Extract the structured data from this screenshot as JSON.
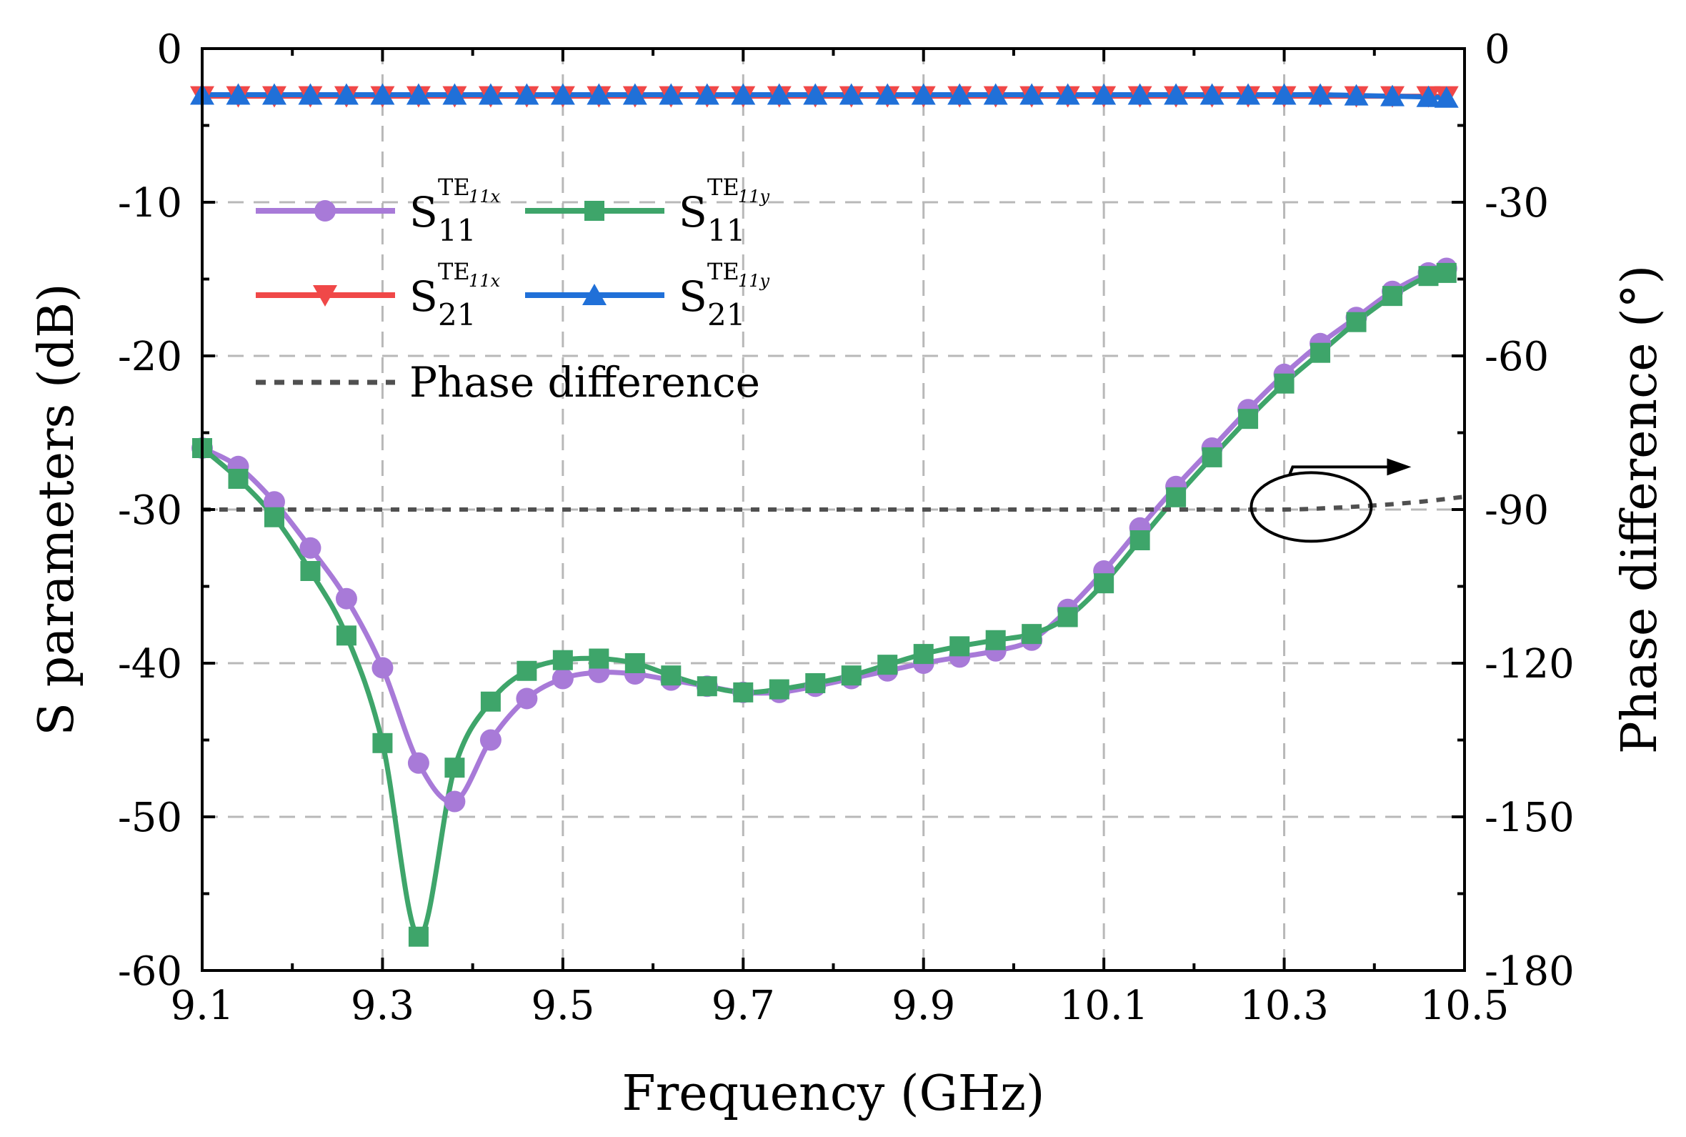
{
  "chart_data": {
    "type": "line",
    "xlabel": "Frequency (GHz)",
    "ylabel": "S parameters (dB)",
    "y2label": "Phase difference (°)",
    "xlim": [
      9.1,
      10.5
    ],
    "ylim": [
      -60,
      0
    ],
    "y2lim": [
      -180,
      0
    ],
    "xticks": [
      "9.1",
      "9.3",
      "9.5",
      "9.7",
      "9.9",
      "10.1",
      "10.3",
      "10.5"
    ],
    "xtick_values": [
      9.1,
      9.3,
      9.5,
      9.7,
      9.9,
      10.1,
      10.3,
      10.5
    ],
    "yticks": [
      "0",
      "-10",
      "-20",
      "-30",
      "-40",
      "-50",
      "-60"
    ],
    "ytick_values": [
      0,
      -10,
      -20,
      -30,
      -40,
      -50,
      -60
    ],
    "y2ticks": [
      "0",
      "-30",
      "-60",
      "-90",
      "-120",
      "-150",
      "-180"
    ],
    "y2tick_values": [
      0,
      -30,
      -60,
      -90,
      -120,
      -150,
      -180
    ],
    "grid": true,
    "legend_position": "upper-left",
    "series": [
      {
        "key": "s11x",
        "label_base": "S",
        "label_sup": "TE",
        "label_sup_sub": "11x",
        "label_sub": "11",
        "color": "#a87ad8",
        "marker": "circle",
        "axis": "left",
        "x": [
          9.1,
          9.14,
          9.18,
          9.22,
          9.26,
          9.3,
          9.34,
          9.38,
          9.42,
          9.46,
          9.5,
          9.54,
          9.58,
          9.62,
          9.66,
          9.7,
          9.74,
          9.78,
          9.82,
          9.86,
          9.9,
          9.94,
          9.98,
          10.02,
          10.06,
          10.1,
          10.14,
          10.18,
          10.22,
          10.26,
          10.3,
          10.34,
          10.38,
          10.42,
          10.46,
          10.48
        ],
        "y": [
          -26.0,
          -27.2,
          -29.5,
          -32.5,
          -35.8,
          -40.3,
          -46.5,
          -49.0,
          -45.0,
          -42.3,
          -41.0,
          -40.6,
          -40.7,
          -41.1,
          -41.5,
          -41.9,
          -41.9,
          -41.5,
          -41.0,
          -40.5,
          -40.0,
          -39.6,
          -39.2,
          -38.5,
          -36.5,
          -34.0,
          -31.2,
          -28.5,
          -26.0,
          -23.5,
          -21.2,
          -19.2,
          -17.5,
          -15.8,
          -14.6,
          -14.3
        ]
      },
      {
        "key": "s11y",
        "label_base": "S",
        "label_sup": "TE",
        "label_sup_sub": "11y",
        "label_sub": "11",
        "color": "#3ea56a",
        "marker": "square",
        "axis": "left",
        "x": [
          9.1,
          9.14,
          9.18,
          9.22,
          9.26,
          9.3,
          9.34,
          9.38,
          9.42,
          9.46,
          9.5,
          9.54,
          9.58,
          9.62,
          9.66,
          9.7,
          9.74,
          9.78,
          9.82,
          9.86,
          9.9,
          9.94,
          9.98,
          10.02,
          10.06,
          10.1,
          10.14,
          10.18,
          10.22,
          10.26,
          10.3,
          10.34,
          10.38,
          10.42,
          10.46,
          10.48
        ],
        "y": [
          -26.0,
          -28.0,
          -30.5,
          -34.0,
          -38.2,
          -45.2,
          -57.8,
          -46.8,
          -42.5,
          -40.5,
          -39.8,
          -39.7,
          -40.0,
          -40.8,
          -41.5,
          -41.9,
          -41.7,
          -41.3,
          -40.8,
          -40.1,
          -39.4,
          -38.9,
          -38.5,
          -38.1,
          -37.0,
          -34.8,
          -32.0,
          -29.2,
          -26.6,
          -24.1,
          -21.8,
          -19.8,
          -17.8,
          -16.1,
          -14.8,
          -14.6
        ]
      },
      {
        "key": "s21x",
        "label_base": "S",
        "label_sup": "TE",
        "label_sup_sub": "11x",
        "label_sub": "21",
        "color": "#f04848",
        "marker": "triangle-down",
        "axis": "left",
        "x": [
          9.1,
          9.14,
          9.18,
          9.22,
          9.26,
          9.3,
          9.34,
          9.38,
          9.42,
          9.46,
          9.5,
          9.54,
          9.58,
          9.62,
          9.66,
          9.7,
          9.74,
          9.78,
          9.82,
          9.86,
          9.9,
          9.94,
          9.98,
          10.02,
          10.06,
          10.1,
          10.14,
          10.18,
          10.22,
          10.26,
          10.3,
          10.34,
          10.38,
          10.42,
          10.46,
          10.48
        ],
        "y": [
          -3.1,
          -3.1,
          -3.1,
          -3.1,
          -3.1,
          -3.1,
          -3.1,
          -3.1,
          -3.1,
          -3.1,
          -3.1,
          -3.1,
          -3.1,
          -3.1,
          -3.1,
          -3.1,
          -3.1,
          -3.1,
          -3.1,
          -3.1,
          -3.1,
          -3.1,
          -3.1,
          -3.1,
          -3.1,
          -3.1,
          -3.1,
          -3.1,
          -3.1,
          -3.1,
          -3.1,
          -3.1,
          -3.1,
          -3.1,
          -3.1,
          -3.1
        ]
      },
      {
        "key": "s21y",
        "label_base": "S",
        "label_sup": "TE",
        "label_sup_sub": "11y",
        "label_sub": "21",
        "color": "#2070d8",
        "marker": "triangle-up",
        "axis": "left",
        "x": [
          9.1,
          9.14,
          9.18,
          9.22,
          9.26,
          9.3,
          9.34,
          9.38,
          9.42,
          9.46,
          9.5,
          9.54,
          9.58,
          9.62,
          9.66,
          9.7,
          9.74,
          9.78,
          9.82,
          9.86,
          9.9,
          9.94,
          9.98,
          10.02,
          10.06,
          10.1,
          10.14,
          10.18,
          10.22,
          10.26,
          10.3,
          10.34,
          10.38,
          10.42,
          10.46,
          10.48
        ],
        "y": [
          -3.0,
          -3.0,
          -3.0,
          -3.0,
          -3.0,
          -3.0,
          -3.0,
          -3.0,
          -3.0,
          -3.0,
          -3.0,
          -3.0,
          -3.0,
          -3.0,
          -3.0,
          -3.0,
          -3.0,
          -3.0,
          -3.0,
          -3.0,
          -3.0,
          -3.0,
          -3.0,
          -3.0,
          -3.0,
          -3.0,
          -3.0,
          -3.0,
          -3.0,
          -3.0,
          -3.0,
          -3.0,
          -3.05,
          -3.1,
          -3.15,
          -3.2
        ]
      },
      {
        "key": "phase",
        "label": "Phase difference",
        "color": "#505050",
        "marker": "none",
        "dashed": true,
        "axis": "right",
        "x": [
          9.1,
          9.3,
          9.5,
          9.7,
          9.9,
          10.1,
          10.2,
          10.3,
          10.35,
          10.4,
          10.45,
          10.5
        ],
        "y": [
          -90.0,
          -90.0,
          -90.0,
          -90.0,
          -90.0,
          -90.0,
          -90.0,
          -90.0,
          -89.7,
          -89.2,
          -88.5,
          -87.5
        ]
      }
    ],
    "annotations": [
      {
        "type": "ellipse-arrow",
        "target_series": "phase",
        "center_x": 10.33,
        "center_y2": -89.5,
        "direction": "right"
      }
    ]
  }
}
